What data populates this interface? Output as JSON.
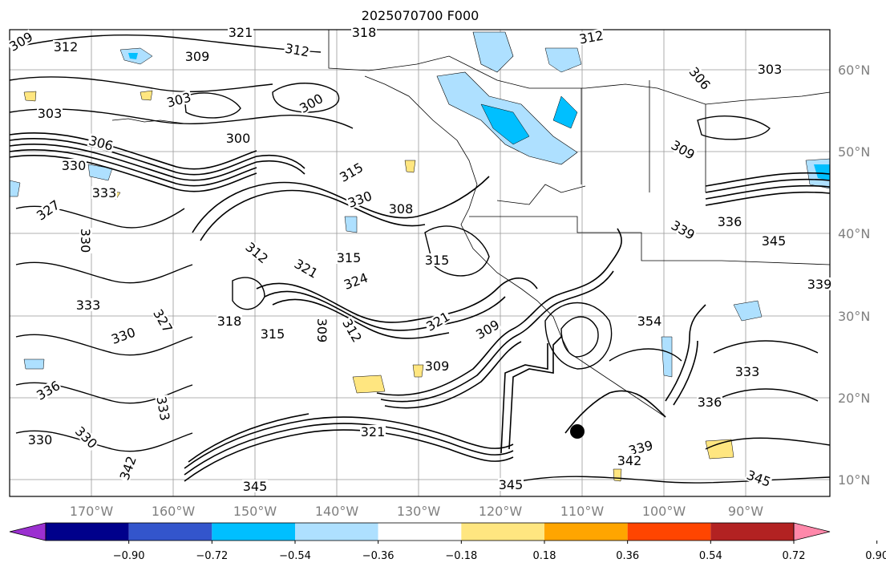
{
  "title": "2025070700 F000",
  "map": {
    "lat_labels": [
      "60°N",
      "50°N",
      "40°N",
      "30°N",
      "20°N",
      "10°N"
    ],
    "lon_labels": [
      "170°W",
      "160°W",
      "150°W",
      "140°W",
      "130°W",
      "120°W",
      "110°W",
      "100°W",
      "90°W"
    ],
    "contour_labels": [
      "309",
      "312",
      "321",
      "318",
      "312",
      "309",
      "312",
      "306",
      "300",
      "303",
      "303",
      "306",
      "300",
      "303",
      "330",
      "333",
      "315",
      "327",
      "330",
      "330",
      "308",
      "321",
      "324",
      "315",
      "309",
      "333",
      "327",
      "330",
      "318",
      "315",
      "309",
      "312",
      "321",
      "336",
      "342",
      "330",
      "333",
      "321",
      "345",
      "339",
      "342",
      "345",
      "345",
      "336",
      "354",
      "333",
      "339",
      "345",
      "339",
      "330",
      "336",
      "312",
      "315",
      "309",
      "309"
    ]
  },
  "colorbar": {
    "tick_labels": [
      "−0.90",
      "−0.72",
      "−0.54",
      "−0.36",
      "−0.18",
      "0.18",
      "0.36",
      "0.54",
      "0.72",
      "0.90"
    ],
    "colors": [
      "#9b30d0",
      "#00008b",
      "#3355cc",
      "#00bfff",
      "#aee0ff",
      "#ffffff",
      "#ffe680",
      "#ffa500",
      "#ff4500",
      "#b22222",
      "#ff88aa"
    ]
  }
}
